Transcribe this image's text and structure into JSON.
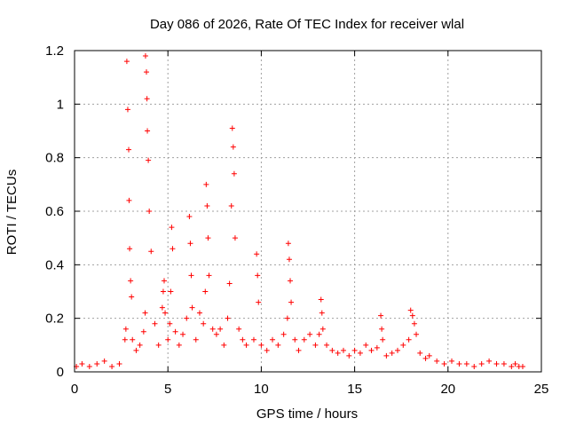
{
  "chart_data": {
    "type": "scatter",
    "title": "Day 086 of 2026, Rate Of TEC Index for receiver wlal",
    "xlabel": "GPS time / hours",
    "ylabel": "ROTI / TECUs",
    "xlim": [
      0,
      25
    ],
    "ylim": [
      0,
      1.2
    ],
    "xticks": [
      0,
      5,
      10,
      15,
      20,
      25
    ],
    "xtick_labels": [
      "0",
      "5",
      "10",
      "15",
      "20",
      "25"
    ],
    "yticks": [
      0,
      0.2,
      0.4,
      0.6,
      0.8,
      1.0,
      1.2
    ],
    "ytick_labels": [
      "0",
      "0.2",
      "0.4",
      "0.6",
      "0.8",
      "1",
      "1.2"
    ],
    "grid": true,
    "marker": "+",
    "series": [
      {
        "name": "ROTI",
        "color": "#ff0000",
        "x": [
          0.1,
          0.4,
          0.8,
          1.2,
          1.6,
          2.0,
          2.4,
          2.7,
          2.75,
          2.8,
          2.85,
          2.9,
          2.92,
          2.95,
          3.0,
          3.05,
          3.1,
          3.3,
          3.5,
          3.7,
          3.78,
          3.8,
          3.85,
          3.88,
          3.9,
          3.95,
          4.0,
          4.1,
          4.3,
          4.5,
          4.7,
          4.75,
          4.8,
          4.85,
          5.0,
          5.1,
          5.15,
          5.2,
          5.25,
          5.4,
          5.6,
          5.8,
          6.0,
          6.15,
          6.2,
          6.25,
          6.3,
          6.5,
          6.7,
          6.9,
          7.0,
          7.05,
          7.1,
          7.15,
          7.2,
          7.4,
          7.6,
          7.8,
          8.0,
          8.2,
          8.3,
          8.4,
          8.45,
          8.5,
          8.55,
          8.6,
          8.8,
          9.0,
          9.2,
          9.6,
          9.75,
          9.8,
          9.85,
          10.0,
          10.3,
          10.6,
          10.9,
          11.2,
          11.4,
          11.45,
          11.5,
          11.55,
          11.6,
          11.8,
          12.0,
          12.3,
          12.6,
          12.9,
          13.1,
          13.2,
          13.25,
          13.3,
          13.5,
          13.8,
          14.1,
          14.4,
          14.7,
          15.0,
          15.3,
          15.6,
          15.9,
          16.2,
          16.4,
          16.45,
          16.5,
          16.7,
          17.0,
          17.3,
          17.6,
          17.9,
          18.0,
          18.1,
          18.2,
          18.3,
          18.5,
          18.8,
          19.0,
          19.4,
          19.8,
          20.2,
          20.6,
          21.0,
          21.4,
          21.8,
          22.2,
          22.6,
          23.0,
          23.4,
          23.6,
          23.8,
          24.0
        ],
        "y": [
          0.02,
          0.03,
          0.02,
          0.03,
          0.04,
          0.02,
          0.03,
          0.12,
          0.16,
          1.16,
          0.98,
          0.83,
          0.64,
          0.46,
          0.34,
          0.28,
          0.12,
          0.08,
          0.1,
          0.15,
          0.22,
          1.18,
          1.12,
          1.02,
          0.9,
          0.79,
          0.6,
          0.45,
          0.18,
          0.1,
          0.24,
          0.3,
          0.34,
          0.22,
          0.12,
          0.18,
          0.3,
          0.54,
          0.46,
          0.15,
          0.1,
          0.14,
          0.2,
          0.58,
          0.48,
          0.36,
          0.24,
          0.12,
          0.22,
          0.18,
          0.3,
          0.7,
          0.62,
          0.5,
          0.36,
          0.16,
          0.14,
          0.16,
          0.1,
          0.2,
          0.33,
          0.62,
          0.91,
          0.84,
          0.74,
          0.5,
          0.16,
          0.12,
          0.1,
          0.12,
          0.44,
          0.36,
          0.26,
          0.1,
          0.08,
          0.12,
          0.1,
          0.14,
          0.2,
          0.48,
          0.42,
          0.34,
          0.26,
          0.12,
          0.08,
          0.12,
          0.14,
          0.1,
          0.14,
          0.27,
          0.22,
          0.16,
          0.1,
          0.08,
          0.07,
          0.08,
          0.06,
          0.08,
          0.07,
          0.1,
          0.08,
          0.09,
          0.21,
          0.16,
          0.12,
          0.06,
          0.07,
          0.08,
          0.1,
          0.12,
          0.23,
          0.21,
          0.18,
          0.14,
          0.07,
          0.05,
          0.06,
          0.04,
          0.03,
          0.04,
          0.03,
          0.03,
          0.02,
          0.03,
          0.04,
          0.03,
          0.03,
          0.02,
          0.03,
          0.02,
          0.02
        ]
      }
    ]
  }
}
